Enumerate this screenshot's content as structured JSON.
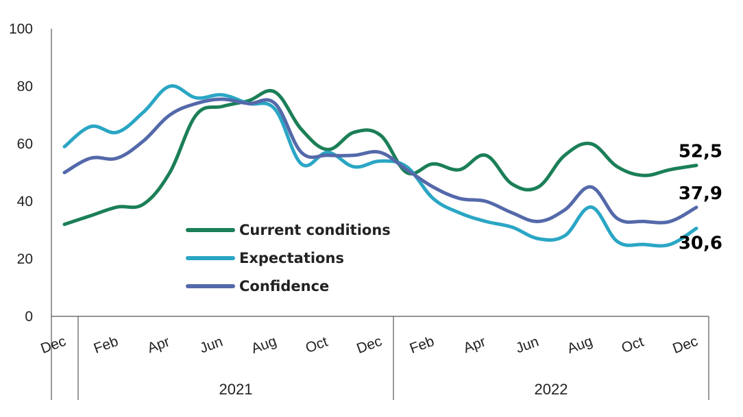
{
  "chart_data": {
    "type": "line",
    "title": "",
    "xlabel": "",
    "ylabel": "",
    "ylim": [
      0,
      100
    ],
    "yticks": [
      0,
      20,
      40,
      60,
      80,
      100
    ],
    "x": [
      "Dec 2020",
      "Jan 2021",
      "Feb 2021",
      "Mar 2021",
      "Apr 2021",
      "May 2021",
      "Jun 2021",
      "Jul 2021",
      "Aug 2021",
      "Sep 2021",
      "Oct 2021",
      "Nov 2021",
      "Dec 2021",
      "Jan 2022",
      "Feb 2022",
      "Mar 2022",
      "Apr 2022",
      "May 2022",
      "Jun 2022",
      "Jul 2022",
      "Aug 2022",
      "Sep 2022",
      "Oct 2022",
      "Nov 2022",
      "Dec 2022"
    ],
    "tick_labels": [
      "Dec",
      "Feb",
      "Apr",
      "Jun",
      "Aug",
      "Oct",
      "Dec",
      "Feb",
      "Apr",
      "Jun",
      "Aug",
      "Oct",
      "Dec"
    ],
    "year_groups": [
      {
        "label": "2021"
      },
      {
        "label": "2022"
      }
    ],
    "grid": false,
    "legend_position": "center-left",
    "series": [
      {
        "name": "Current conditions",
        "color": "#1b7f57",
        "values": [
          32,
          35,
          38,
          39,
          50,
          70,
          73,
          75,
          78,
          65,
          58,
          64,
          63,
          50,
          53,
          51,
          56,
          46,
          45,
          56,
          60,
          52,
          49,
          51,
          52.5
        ],
        "end_label": "52,5"
      },
      {
        "name": "Expectations",
        "color": "#2aa6c4",
        "values": [
          59,
          66,
          64,
          71,
          80,
          76,
          77,
          74,
          72,
          53,
          57,
          52,
          54,
          52,
          41,
          36,
          33,
          31,
          27,
          28,
          38,
          26,
          25,
          25,
          30.6
        ],
        "end_label": "30,6"
      },
      {
        "name": "Confidence",
        "color": "#5469aa",
        "values": [
          50,
          55,
          55,
          61,
          70,
          74,
          75.5,
          74,
          74,
          57,
          56,
          56,
          57,
          51,
          45,
          41,
          40,
          36,
          33,
          37,
          45,
          34,
          33,
          33,
          37.9
        ],
        "end_label": "37,9"
      }
    ]
  }
}
